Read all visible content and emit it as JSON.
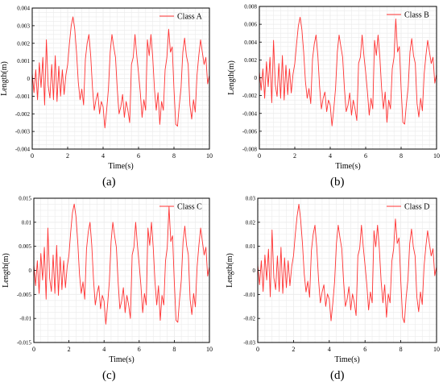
{
  "panels": [
    {
      "letter": "(a)"
    },
    {
      "letter": "(b)"
    },
    {
      "letter": "(c)"
    },
    {
      "letter": "(d)"
    }
  ],
  "colors": {
    "series": "#ff3333",
    "axis": "#000000",
    "grid": "#ebebeb"
  },
  "chart_data": [
    {
      "type": "line",
      "title": "",
      "xlabel": "Time(s)",
      "ylabel": "Length(m)",
      "xlim": [
        0,
        10
      ],
      "ylim": [
        -0.004,
        0.004
      ],
      "xticks": [
        0,
        2,
        4,
        6,
        8,
        10
      ],
      "yticks": [
        -0.004,
        -0.003,
        -0.002,
        -0.001,
        0,
        0.001,
        0.002,
        0.003,
        0.004
      ],
      "ytick_labels": [
        "-0.004",
        "-0.003",
        "-0.002",
        "-0.001",
        "0",
        "0.001",
        "0.002",
        "0.003",
        "0.004"
      ],
      "legend": {
        "position": "top-right"
      },
      "grid": true,
      "series": [
        {
          "name": "Class A",
          "x": [
            0,
            0.1,
            0.2,
            0.3,
            0.4,
            0.5,
            0.6,
            0.7,
            0.8,
            0.9,
            1,
            1.1,
            1.2,
            1.3,
            1.4,
            1.5,
            1.6,
            1.7,
            1.8,
            1.9,
            2,
            2.1,
            2.2,
            2.3,
            2.4,
            2.5,
            2.6,
            2.7,
            2.8,
            2.9,
            3,
            3.1,
            3.2,
            3.3,
            3.4,
            3.5,
            3.6,
            3.7,
            3.8,
            3.9,
            4,
            4.1,
            4.2,
            4.3,
            4.4,
            4.5,
            4.6,
            4.7,
            4.8,
            4.9,
            5,
            5.1,
            5.2,
            5.3,
            5.4,
            5.5,
            5.6,
            5.7,
            5.8,
            5.9,
            6,
            6.1,
            6.2,
            6.3,
            6.4,
            6.5,
            6.6,
            6.7,
            6.8,
            6.9,
            7,
            7.1,
            7.2,
            7.3,
            7.4,
            7.5,
            7.6,
            7.7,
            7.8,
            7.9,
            8,
            8.1,
            8.2,
            8.3,
            8.4,
            8.5,
            8.6,
            8.7,
            8.8,
            8.9,
            9,
            9.1,
            9.2,
            9.3,
            9.4,
            9.5,
            9.6,
            9.7,
            9.8,
            9.9,
            10
          ],
          "y": [
            0.0003,
            -0.0008,
            0.0005,
            -0.0012,
            0.0009,
            -0.0005,
            0.0012,
            -0.0015,
            0.0022,
            -0.0004,
            -0.0011,
            0.0008,
            -0.0012,
            0.0013,
            -0.0013,
            0.0007,
            -0.001,
            0.0005,
            -0.0009,
            0.0002,
            0.0008,
            0.002,
            0.003,
            0.0035,
            0.0028,
            0.0015,
            -0.0002,
            -0.0012,
            -0.0006,
            -0.0015,
            0.0011,
            0.002,
            0.0025,
            0.0013,
            -0.0005,
            -0.0018,
            -0.0012,
            -0.0008,
            -0.002,
            -0.0013,
            -0.0016,
            -0.0028,
            -0.0018,
            -0.0006,
            0.0015,
            0.0025,
            0.0018,
            0.0012,
            -0.0006,
            -0.002,
            -0.0016,
            -0.0009,
            -0.0022,
            -0.0013,
            -0.0018,
            -0.0025,
            0.0008,
            0.0012,
            0.0025,
            0.0013,
            0.0003,
            -0.0008,
            -0.0022,
            -0.0012,
            -0.0018,
            0.0022,
            0.0013,
            0.0025,
            0.0012,
            -0.0006,
            -0.0018,
            -0.0008,
            -0.0026,
            -0.0013,
            -0.0018,
            0.0005,
            0.0012,
            0.0028,
            0.0015,
            0.0018,
            -0.0006,
            -0.0026,
            -0.0027,
            -0.0015,
            -0.0005,
            0.0015,
            0.0023,
            0.0013,
            0.0008,
            -0.0015,
            -0.0023,
            -0.0012,
            -0.0019,
            0.0002,
            0.0013,
            0.0022,
            0.0015,
            0.0008,
            0.0012,
            -0.0003,
            0.0002
          ]
        }
      ]
    },
    {
      "type": "line",
      "title": "",
      "xlabel": "Time(s)",
      "ylabel": "Length(m)",
      "xlim": [
        0,
        10
      ],
      "ylim": [
        -0.008,
        0.008
      ],
      "xticks": [
        0,
        2,
        4,
        6,
        8,
        10
      ],
      "yticks": [
        -0.008,
        -0.006,
        -0.004,
        -0.002,
        0,
        0.002,
        0.004,
        0.006,
        0.008
      ],
      "ytick_labels": [
        "-0.008",
        "-0.006",
        "-0.004",
        "-0.002",
        "0",
        "0.002",
        "0.004",
        "0.006",
        "0.008"
      ],
      "legend": {
        "position": "top-right"
      },
      "grid": true,
      "series": [
        {
          "name": "Class B",
          "x": [
            0,
            0.1,
            0.2,
            0.3,
            0.4,
            0.5,
            0.6,
            0.7,
            0.8,
            0.9,
            1,
            1.1,
            1.2,
            1.3,
            1.4,
            1.5,
            1.6,
            1.7,
            1.8,
            1.9,
            2,
            2.1,
            2.2,
            2.3,
            2.4,
            2.5,
            2.6,
            2.7,
            2.8,
            2.9,
            3,
            3.1,
            3.2,
            3.3,
            3.4,
            3.5,
            3.6,
            3.7,
            3.8,
            3.9,
            4,
            4.1,
            4.2,
            4.3,
            4.4,
            4.5,
            4.6,
            4.7,
            4.8,
            4.9,
            5,
            5.1,
            5.2,
            5.3,
            5.4,
            5.5,
            5.6,
            5.7,
            5.8,
            5.9,
            6,
            6.1,
            6.2,
            6.3,
            6.4,
            6.5,
            6.6,
            6.7,
            6.8,
            6.9,
            7,
            7.1,
            7.2,
            7.3,
            7.4,
            7.5,
            7.6,
            7.7,
            7.8,
            7.9,
            8,
            8.1,
            8.2,
            8.3,
            8.4,
            8.5,
            8.6,
            8.7,
            8.8,
            8.9,
            9,
            9.1,
            9.2,
            9.3,
            9.4,
            9.5,
            9.6,
            9.7,
            9.8,
            9.9,
            10
          ],
          "y": [
            0.0007,
            -0.0014,
            0.001,
            -0.0023,
            0.0018,
            -0.001,
            0.0023,
            -0.0028,
            0.0042,
            -0.0008,
            -0.0021,
            0.0016,
            -0.0023,
            0.0025,
            -0.0025,
            0.0014,
            -0.0019,
            0.001,
            -0.0017,
            0.0004,
            0.0016,
            0.0038,
            0.0058,
            0.0068,
            0.0054,
            0.0029,
            -0.0004,
            -0.0023,
            -0.0012,
            -0.0029,
            0.0021,
            0.0038,
            0.0048,
            0.0025,
            -0.001,
            -0.0035,
            -0.0023,
            -0.0016,
            -0.0038,
            -0.0025,
            -0.0031,
            -0.0054,
            -0.0035,
            -0.0012,
            0.0029,
            0.0048,
            0.0035,
            0.0023,
            -0.0012,
            -0.0038,
            -0.0031,
            -0.0017,
            -0.0042,
            -0.0025,
            -0.0035,
            -0.0048,
            0.0016,
            0.0023,
            0.0048,
            0.0025,
            0.0006,
            -0.0016,
            -0.0042,
            -0.0023,
            -0.0035,
            0.0042,
            0.0025,
            0.0048,
            0.0023,
            -0.0012,
            -0.0035,
            -0.0016,
            -0.005,
            -0.0025,
            -0.0035,
            0.001,
            0.0023,
            0.0066,
            0.0029,
            0.0035,
            -0.0012,
            -0.005,
            -0.0052,
            -0.0029,
            -0.001,
            0.0029,
            0.0044,
            0.0025,
            0.0016,
            -0.0029,
            -0.0044,
            -0.0023,
            -0.0037,
            0.0004,
            0.0025,
            0.0042,
            0.0029,
            0.0016,
            0.0023,
            -0.0006,
            0.0004
          ]
        }
      ]
    },
    {
      "type": "line",
      "title": "",
      "xlabel": "Time(s)",
      "ylabel": "Length(m)",
      "xlim": [
        0,
        10
      ],
      "ylim": [
        -0.015,
        0.015
      ],
      "xticks": [
        0,
        2,
        4,
        6,
        8,
        10
      ],
      "yticks": [
        -0.015,
        -0.01,
        -0.005,
        0,
        0.005,
        0.01,
        0.015
      ],
      "ytick_labels": [
        "-0.015",
        "-0.01",
        "-0.005",
        "0",
        "0.005",
        "0.01",
        "0.015"
      ],
      "legend": {
        "position": "top-right"
      },
      "grid": true,
      "series": [
        {
          "name": "Class C",
          "x": [
            0,
            0.1,
            0.2,
            0.3,
            0.4,
            0.5,
            0.6,
            0.7,
            0.8,
            0.9,
            1,
            1.1,
            1.2,
            1.3,
            1.4,
            1.5,
            1.6,
            1.7,
            1.8,
            1.9,
            2,
            2.1,
            2.2,
            2.3,
            2.4,
            2.5,
            2.6,
            2.7,
            2.8,
            2.9,
            3,
            3.1,
            3.2,
            3.3,
            3.4,
            3.5,
            3.6,
            3.7,
            3.8,
            3.9,
            4,
            4.1,
            4.2,
            4.3,
            4.4,
            4.5,
            4.6,
            4.7,
            4.8,
            4.9,
            5,
            5.1,
            5.2,
            5.3,
            5.4,
            5.5,
            5.6,
            5.7,
            5.8,
            5.9,
            6,
            6.1,
            6.2,
            6.3,
            6.4,
            6.5,
            6.6,
            6.7,
            6.8,
            6.9,
            7,
            7.1,
            7.2,
            7.3,
            7.4,
            7.5,
            7.6,
            7.7,
            7.8,
            7.9,
            8,
            8.1,
            8.2,
            8.3,
            8.4,
            8.5,
            8.6,
            8.7,
            8.8,
            8.9,
            9,
            9.1,
            9.2,
            9.3,
            9.4,
            9.5,
            9.6,
            9.7,
            9.8,
            9.9,
            10
          ],
          "y": [
            0.0012,
            -0.0032,
            0.002,
            -0.0048,
            0.0035,
            -0.002,
            0.0048,
            -0.006,
            0.0088,
            -0.0016,
            -0.0044,
            0.0032,
            -0.0048,
            0.0052,
            -0.0052,
            0.0028,
            -0.004,
            0.002,
            -0.0036,
            0.0008,
            0.0032,
            0.008,
            0.012,
            0.0138,
            0.0112,
            0.006,
            -0.0008,
            -0.0048,
            -0.0024,
            -0.006,
            0.0044,
            0.008,
            0.01,
            0.0052,
            -0.002,
            -0.0072,
            -0.0048,
            -0.0032,
            -0.008,
            -0.0052,
            -0.0064,
            -0.0112,
            -0.0072,
            -0.0024,
            0.006,
            0.01,
            0.0072,
            0.0048,
            -0.0024,
            -0.008,
            -0.0064,
            -0.0036,
            -0.0088,
            -0.0052,
            -0.0072,
            -0.01,
            0.0032,
            0.0048,
            0.01,
            0.0052,
            0.0012,
            -0.0032,
            -0.0088,
            -0.0048,
            -0.0072,
            0.0088,
            0.0052,
            0.01,
            0.0048,
            -0.0024,
            -0.0072,
            -0.0032,
            -0.0104,
            -0.0052,
            -0.0072,
            0.002,
            0.0048,
            0.0132,
            0.006,
            0.0072,
            -0.0024,
            -0.0104,
            -0.0108,
            -0.006,
            -0.002,
            0.006,
            0.0092,
            0.0052,
            0.0032,
            -0.006,
            -0.0092,
            -0.0048,
            -0.0076,
            0.0008,
            0.0052,
            0.0088,
            0.006,
            0.0032,
            0.0048,
            -0.0012,
            0.0008
          ]
        }
      ]
    },
    {
      "type": "line",
      "title": "",
      "xlabel": "Time(s)",
      "ylabel": "Length(m)",
      "xlim": [
        0,
        10
      ],
      "ylim": [
        -0.03,
        0.03
      ],
      "xticks": [
        0,
        2,
        4,
        6,
        8,
        10
      ],
      "yticks": [
        -0.03,
        -0.02,
        -0.01,
        0,
        0.01,
        0.02,
        0.03
      ],
      "ytick_labels": [
        "-0.03",
        "-0.02",
        "-0.01",
        "0",
        "0.01",
        "0.02",
        "0.03"
      ],
      "legend": {
        "position": "top-right"
      },
      "grid": true,
      "series": [
        {
          "name": "Class D",
          "x": [
            0,
            0.1,
            0.2,
            0.3,
            0.4,
            0.5,
            0.6,
            0.7,
            0.8,
            0.9,
            1,
            1.1,
            1.2,
            1.3,
            1.4,
            1.5,
            1.6,
            1.7,
            1.8,
            1.9,
            2,
            2.1,
            2.2,
            2.3,
            2.4,
            2.5,
            2.6,
            2.7,
            2.8,
            2.9,
            3,
            3.1,
            3.2,
            3.3,
            3.4,
            3.5,
            3.6,
            3.7,
            3.8,
            3.9,
            4,
            4.1,
            4.2,
            4.3,
            4.4,
            4.5,
            4.6,
            4.7,
            4.8,
            4.9,
            5,
            5.1,
            5.2,
            5.3,
            5.4,
            5.5,
            5.6,
            5.7,
            5.8,
            5.9,
            6,
            6.1,
            6.2,
            6.3,
            6.4,
            6.5,
            6.6,
            6.7,
            6.8,
            6.9,
            7,
            7.1,
            7.2,
            7.3,
            7.4,
            7.5,
            7.6,
            7.7,
            7.8,
            7.9,
            8,
            8.1,
            8.2,
            8.3,
            8.4,
            8.5,
            8.6,
            8.7,
            8.8,
            8.9,
            9,
            9.1,
            9.2,
            9.3,
            9.4,
            9.5,
            9.6,
            9.7,
            9.8,
            9.9,
            10
          ],
          "y": [
            0.0024,
            -0.006,
            0.004,
            -0.0088,
            0.0064,
            -0.004,
            0.0088,
            -0.011,
            0.0168,
            -0.003,
            -0.008,
            0.006,
            -0.0088,
            0.0096,
            -0.0096,
            0.0052,
            -0.0072,
            0.004,
            -0.0064,
            0.0016,
            0.006,
            0.015,
            0.0225,
            0.0275,
            0.021,
            0.0112,
            -0.0015,
            -0.009,
            -0.0045,
            -0.0112,
            0.0082,
            0.015,
            0.0188,
            0.0098,
            -0.0038,
            -0.0135,
            -0.009,
            -0.006,
            -0.015,
            -0.0098,
            -0.012,
            -0.021,
            -0.0135,
            -0.0045,
            0.0112,
            0.0188,
            0.0135,
            0.009,
            -0.0045,
            -0.015,
            -0.012,
            -0.0068,
            -0.0165,
            -0.0098,
            -0.0135,
            -0.0188,
            0.006,
            0.009,
            0.0188,
            0.0098,
            0.0022,
            -0.006,
            -0.0165,
            -0.009,
            -0.0135,
            0.0165,
            0.0098,
            0.0188,
            0.009,
            -0.0045,
            -0.0135,
            -0.006,
            -0.0195,
            -0.0098,
            -0.0135,
            0.0038,
            0.009,
            0.0214,
            0.0112,
            0.0135,
            -0.0045,
            -0.0195,
            -0.0218,
            -0.0112,
            -0.0038,
            0.0112,
            0.0172,
            0.0098,
            0.006,
            -0.0112,
            -0.0172,
            -0.009,
            -0.0142,
            0.0015,
            0.0098,
            0.0165,
            0.0112,
            0.006,
            0.009,
            -0.0022,
            0.0015
          ]
        }
      ]
    }
  ]
}
